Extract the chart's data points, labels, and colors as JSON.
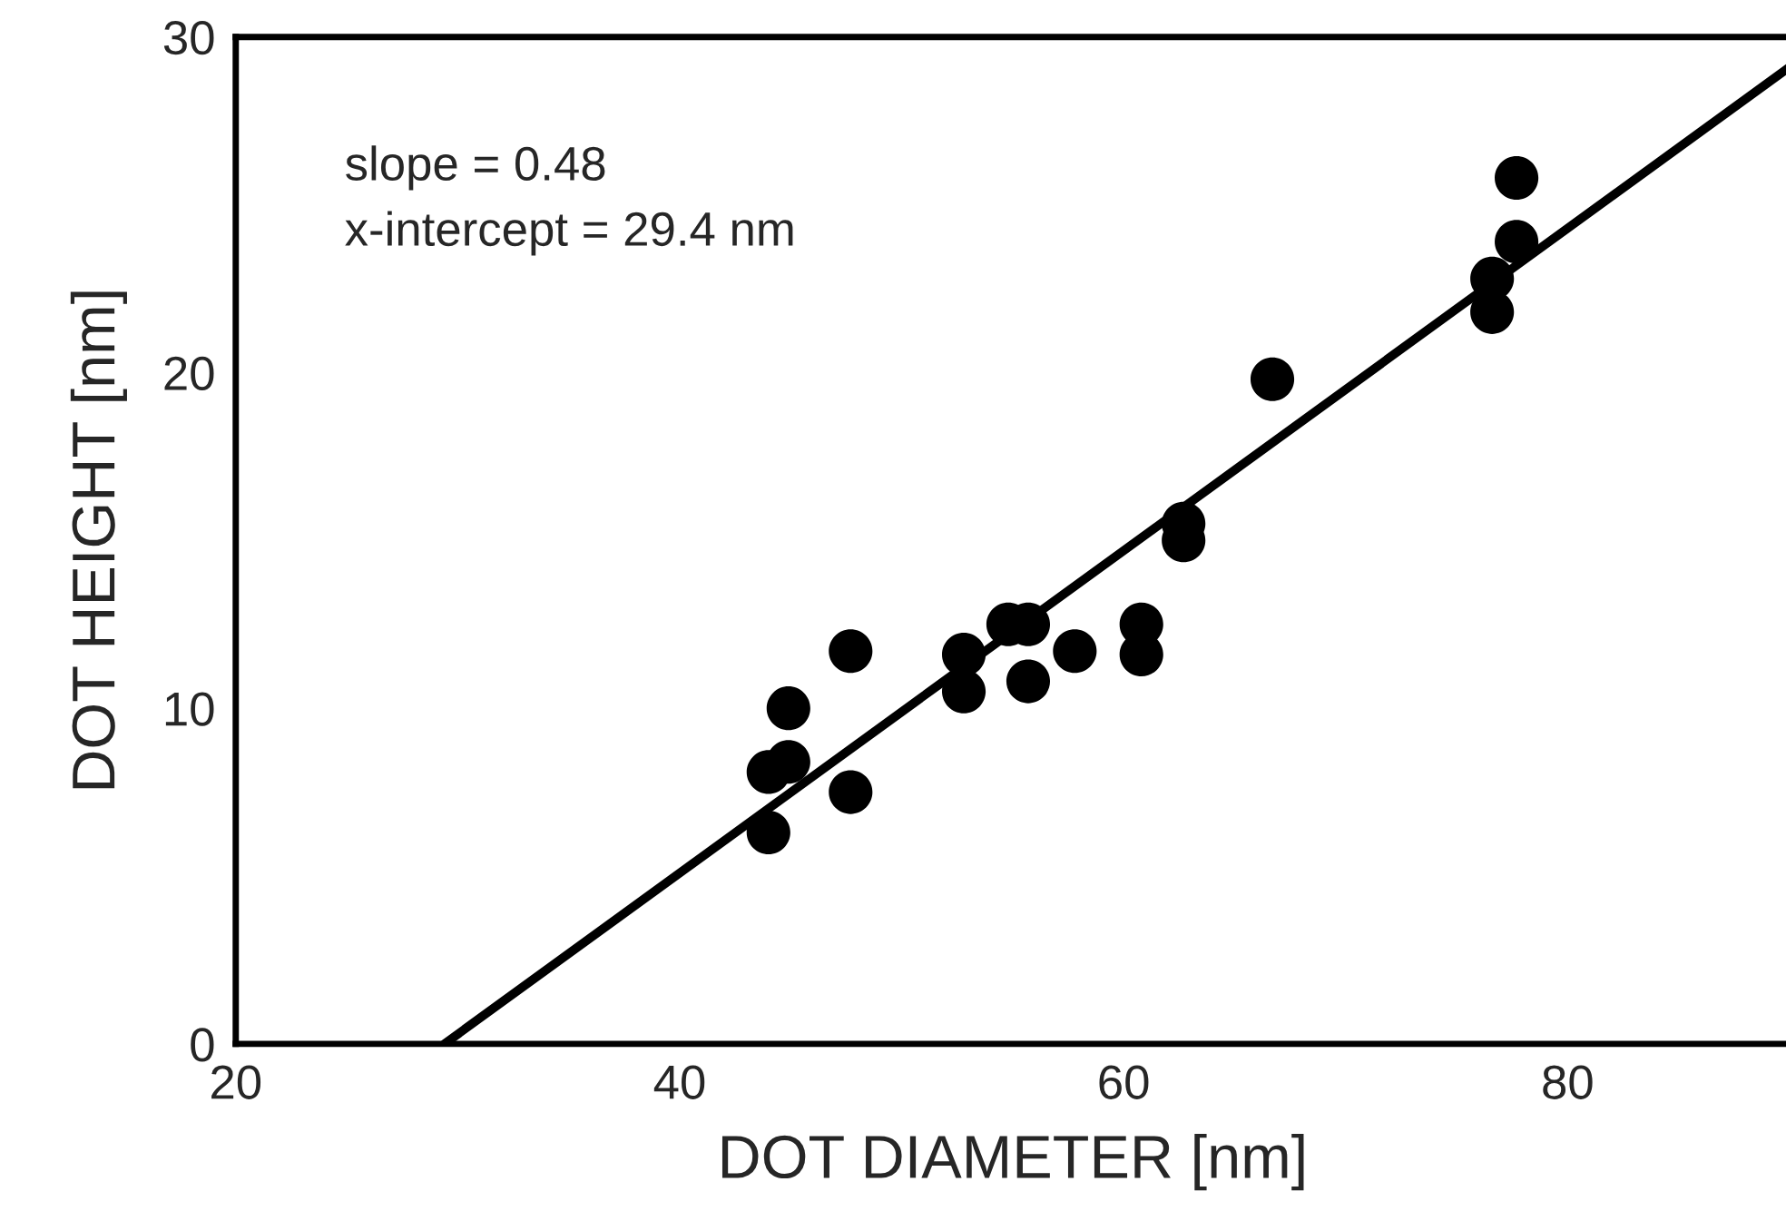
{
  "chart_data": {
    "type": "scatter",
    "xlabel": "DOT DIAMETER [nm]",
    "ylabel": "DOT HEIGHT [nm]",
    "xlim": [
      20,
      90
    ],
    "ylim": [
      0,
      30
    ],
    "xticks": [
      20,
      40,
      60,
      80
    ],
    "yticks": [
      0,
      10,
      20,
      30
    ],
    "grid": false,
    "legend": false,
    "annotations": [
      "slope = 0.48",
      "x-intercept = 29.4 nm"
    ],
    "series": [
      {
        "color": "#000000",
        "marker": "circle",
        "x": [
          44.0,
          44.9,
          44.9,
          44.0,
          47.7,
          47.7,
          52.8,
          52.8,
          54.8,
          55.7,
          55.7,
          57.8,
          60.8,
          60.8,
          62.7,
          62.7,
          66.7,
          76.6,
          76.6,
          77.7,
          77.7
        ],
        "values": [
          8.1,
          8.4,
          10.0,
          6.3,
          11.7,
          7.5,
          11.6,
          10.5,
          12.5,
          12.5,
          10.8,
          11.7,
          12.5,
          11.6,
          15.5,
          15.0,
          19.8,
          22.8,
          21.8,
          23.9,
          25.8
        ]
      },
      {
        "type": "line",
        "color": "#000000",
        "line_style": "solid",
        "x": [
          29.4,
          90
        ],
        "values": [
          0,
          29.1
        ]
      }
    ]
  }
}
